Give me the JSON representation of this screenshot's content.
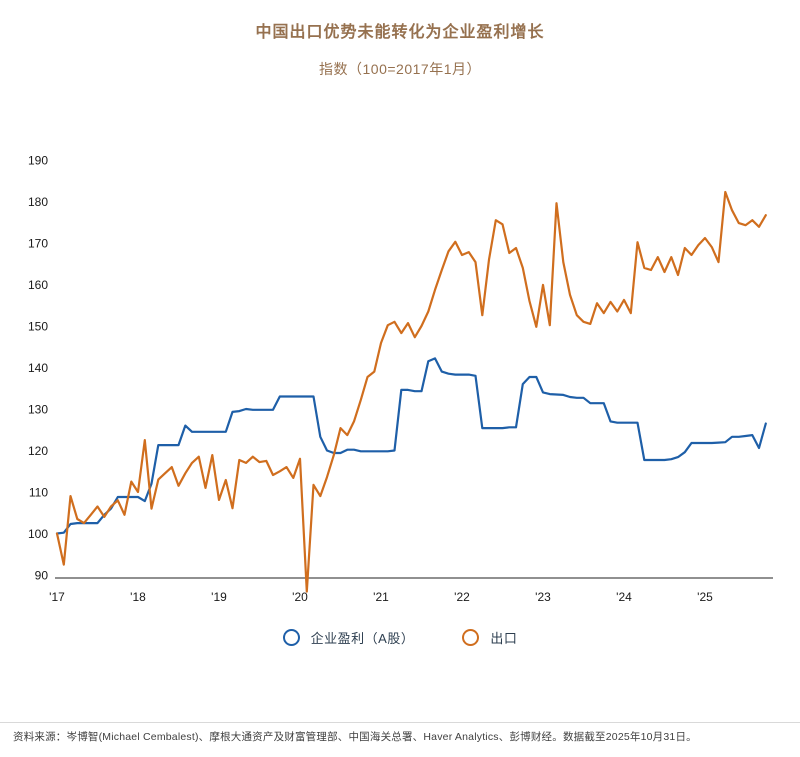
{
  "header": {
    "title": "中国出口优势未能转化为企业盈利增长",
    "subtitle": "指数（100=2017年1月）"
  },
  "chart_data": {
    "type": "line",
    "title": "中国出口优势未能转化为企业盈利增长",
    "subtitle": "指数（100=2017年1月）",
    "x_unit": "month",
    "x_start": "2017-01",
    "x_end": "2025-10",
    "x_tick_labels": [
      "'17",
      "'18",
      "'19",
      "'20",
      "'21",
      "'22",
      "'23",
      "'24",
      "'25"
    ],
    "y_ticks": [
      90,
      100,
      110,
      120,
      130,
      140,
      150,
      160,
      170,
      180,
      190
    ],
    "ylim": [
      90,
      190
    ],
    "grid": false,
    "legend_position": "bottom",
    "axis_color": "#4d4d4d",
    "series": [
      {
        "name": "企业盈利（A股）",
        "color": "#1E5FA8",
        "values": [
          100,
          100.2,
          102.3,
          102.5,
          102.5,
          102.5,
          102.5,
          104.5,
          106,
          108.8,
          108.8,
          108.8,
          108.8,
          107.8,
          112,
          121.3,
          121.3,
          121.3,
          121.3,
          126,
          124.5,
          124.5,
          124.5,
          124.5,
          124.5,
          124.5,
          129.3,
          129.5,
          130,
          129.8,
          129.8,
          129.8,
          129.8,
          133,
          133,
          133,
          133,
          133,
          133,
          123.3,
          120,
          119.4,
          119.4,
          120.2,
          120.2,
          119.8,
          119.8,
          119.8,
          119.8,
          119.8,
          120,
          134.6,
          134.6,
          134.3,
          134.3,
          141.5,
          142.2,
          139,
          138.5,
          138.3,
          138.3,
          138.3,
          138,
          125.4,
          125.4,
          125.4,
          125.4,
          125.6,
          125.6,
          136,
          137.7,
          137.7,
          134,
          133.6,
          133.5,
          133.4,
          132.9,
          132.7,
          132.7,
          131.4,
          131.4,
          131.4,
          127,
          126.7,
          126.7,
          126.7,
          126.7,
          117.7,
          117.7,
          117.7,
          117.7,
          117.9,
          118.4,
          119.6,
          121.8,
          121.8,
          121.8,
          121.8,
          121.9,
          122,
          123.3,
          123.3,
          123.5,
          123.7,
          120.6,
          126.5
        ]
      },
      {
        "name": "出口",
        "color": "#D06E1E",
        "values": [
          100,
          92.5,
          109,
          103.5,
          102.5,
          104.5,
          106.5,
          104,
          106.5,
          108,
          104.5,
          112.5,
          110,
          122.5,
          106,
          113,
          114.5,
          116,
          111.5,
          114.5,
          117,
          118.5,
          111,
          118.9,
          108.1,
          112.9,
          106.1,
          117.7,
          117,
          118.5,
          117.2,
          117.5,
          114.1,
          115,
          116,
          113.4,
          118,
          86,
          111.7,
          109,
          113.6,
          118.9,
          125.4,
          123.7,
          127,
          132.2,
          137.7,
          139,
          145.9,
          150.2,
          151,
          148.3,
          150.7,
          147.3,
          150,
          153.5,
          158.7,
          163.5,
          168,
          170.3,
          167.1,
          167.8,
          165.4,
          152.6,
          166,
          175.5,
          174.5,
          167.6,
          168.8,
          164,
          156,
          149.8,
          159.9,
          150.2,
          179.6,
          165.4,
          157.5,
          152.6,
          151,
          150.5,
          155.5,
          153.1,
          155.8,
          153.5,
          156.3,
          153.1,
          170.2,
          164,
          163.5,
          166.6,
          163,
          166.6,
          162.3,
          168.8,
          167.1,
          169.5,
          171.2,
          169,
          165.4,
          182.3,
          177.9,
          174.8,
          174.3,
          175.5,
          173.9,
          176.7
        ]
      }
    ]
  },
  "legend": {
    "items": [
      {
        "label": "企业盈利（A股）",
        "color": "#1E5FA8"
      },
      {
        "label": "出口",
        "color": "#D06E1E"
      }
    ]
  },
  "footer": {
    "source": "资料来源：岑博智(Michael Cembalest)、摩根大通资产及财富管理部、中国海关总署、Haver Analytics、彭博财经。数据截至2025年10月31日。"
  }
}
